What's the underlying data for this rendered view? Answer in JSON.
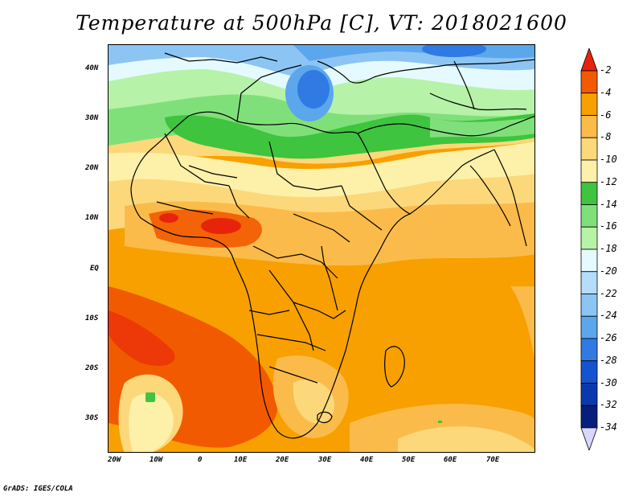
{
  "title": "Temperature at 500hPa [C], VT: 2018021600",
  "credit": "GrADS: IGES/COLA",
  "lat_labels": [
    "40N",
    "30N",
    "20N",
    "10N",
    "EQ",
    "10S",
    "20S",
    "30S"
  ],
  "lon_labels": [
    "20W",
    "10W",
    "0",
    "10E",
    "20E",
    "30E",
    "40E",
    "50E",
    "60E",
    "70E"
  ],
  "colorbar": {
    "labels": [
      "-2",
      "-4",
      "-6",
      "-8",
      "-10",
      "-12",
      "-14",
      "-16",
      "-18",
      "-20",
      "-22",
      "-24",
      "-26",
      "-28",
      "-30",
      "-32",
      "-34"
    ],
    "colors": [
      "#e8230c",
      "#f25a00",
      "#f7a000",
      "#fbbb4a",
      "#fcd87a",
      "#fdf0a8",
      "#3ec43e",
      "#7fe07a",
      "#b6f2a8",
      "#e4faff",
      "#b5dcfa",
      "#8cc5f3",
      "#5ca6ec",
      "#2f7be3",
      "#1455cf",
      "#0b39ad",
      "#061e7c",
      "#d8d8ff"
    ]
  }
}
